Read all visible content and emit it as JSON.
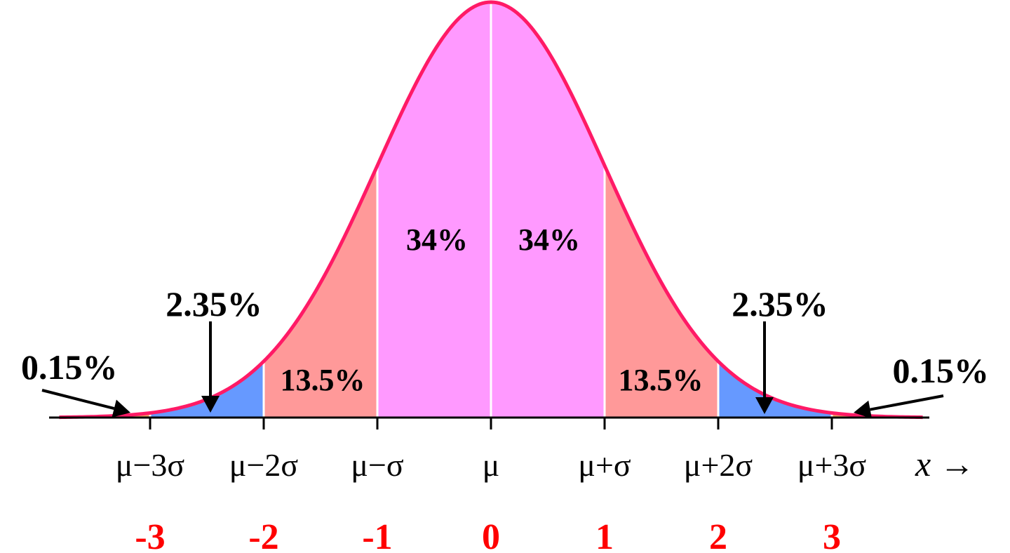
{
  "chart_data": {
    "type": "area",
    "title": "",
    "distribution": "normal",
    "x_axis": {
      "label": "x →",
      "ticks": [
        {
          "z": -3,
          "symbol": "μ−3σ",
          "number": "-3"
        },
        {
          "z": -2,
          "symbol": "μ−2σ",
          "number": "-2"
        },
        {
          "z": -1,
          "symbol": "μ−σ",
          "number": "-1"
        },
        {
          "z": 0,
          "symbol": "μ",
          "number": "0"
        },
        {
          "z": 1,
          "symbol": "μ+σ",
          "number": "1"
        },
        {
          "z": 2,
          "symbol": "μ+2σ",
          "number": "2"
        },
        {
          "z": 3,
          "symbol": "μ+3σ",
          "number": "3"
        }
      ],
      "xlim": [
        -3.8,
        3.8
      ]
    },
    "regions": [
      {
        "from": -3.8,
        "to": -3,
        "percent": "0.15%",
        "value": 0.15,
        "color": "#f0a860"
      },
      {
        "from": -3,
        "to": -2,
        "percent": "2.35%",
        "value": 2.35,
        "color": "#6699ff"
      },
      {
        "from": -2,
        "to": -1,
        "percent": "13.5%",
        "value": 13.5,
        "color": "#ff9999"
      },
      {
        "from": -1,
        "to": 0,
        "percent": "34%",
        "value": 34,
        "color": "#ff99ff"
      },
      {
        "from": 0,
        "to": 1,
        "percent": "34%",
        "value": 34,
        "color": "#ff99ff"
      },
      {
        "from": 1,
        "to": 2,
        "percent": "13.5%",
        "value": 13.5,
        "color": "#ff9999"
      },
      {
        "from": 2,
        "to": 3,
        "percent": "2.35%",
        "value": 2.35,
        "color": "#6699ff"
      },
      {
        "from": 3,
        "to": 3.8,
        "percent": "0.15%",
        "value": 0.15,
        "color": "#f0a860"
      }
    ],
    "curve_color": "#ff1a66",
    "number_color": "#ff0000",
    "grid": false,
    "legend": "none"
  }
}
